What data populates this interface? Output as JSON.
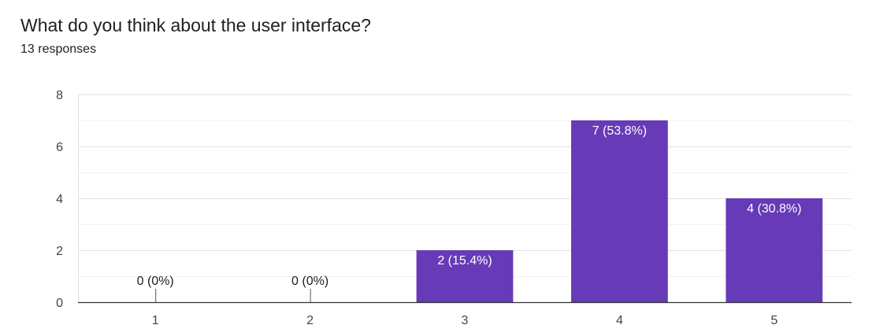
{
  "question": {
    "title": "What do you think about the user interface?",
    "responses": "13 responses"
  },
  "colors": {
    "bar": "#673ab7",
    "grid": "#e8e8e8",
    "axis": "#333333",
    "label_inside": "#ffffff",
    "label_outside": "#202124"
  },
  "chart_data": {
    "type": "bar",
    "categories": [
      "1",
      "2",
      "3",
      "4",
      "5"
    ],
    "values": [
      0,
      0,
      2,
      7,
      4
    ],
    "data_labels": [
      "0 (0%)",
      "0 (0%)",
      "2 (15.4%)",
      "7 (53.8%)",
      "4 (30.8%)"
    ],
    "ylim": [
      0,
      8
    ],
    "yticks": [
      0,
      2,
      4,
      6,
      8
    ],
    "title": "",
    "xlabel": "",
    "ylabel": "",
    "grid": true
  }
}
